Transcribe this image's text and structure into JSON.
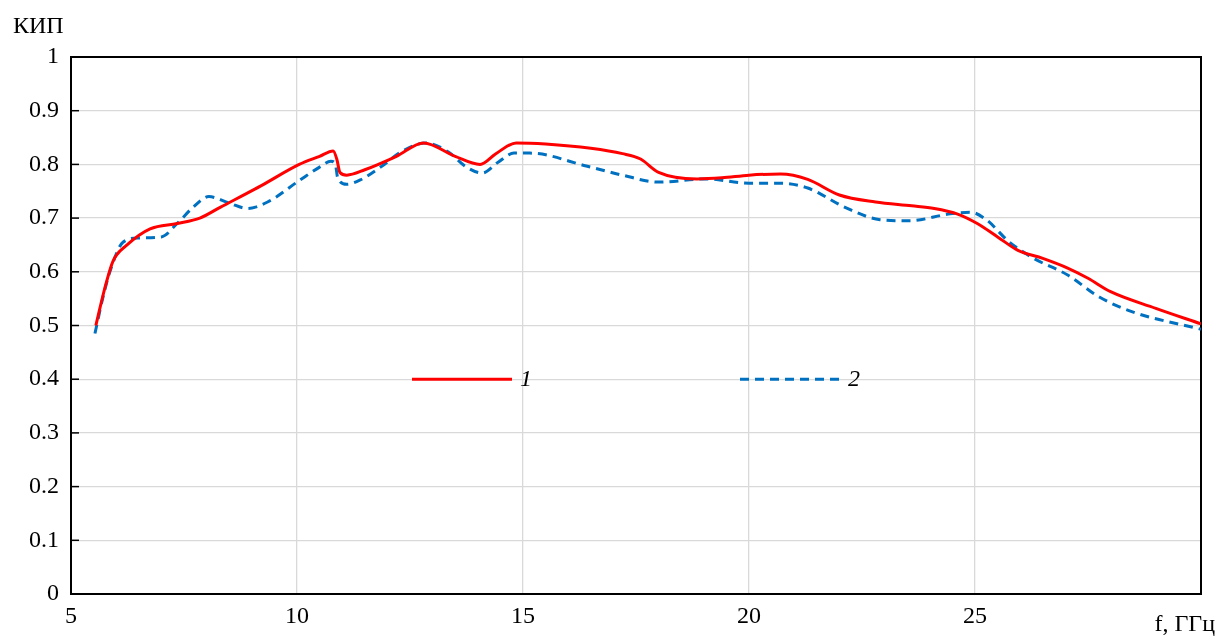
{
  "chart_data": {
    "type": "line",
    "xlabel": "f, ГГц",
    "ylabel": "КИП",
    "xlim": [
      5,
      30
    ],
    "xticks": [
      5,
      10,
      15,
      20,
      25
    ],
    "ylim": [
      0,
      1
    ],
    "yticks": [
      0,
      0.1,
      0.2,
      0.3,
      0.4,
      0.5,
      0.6,
      0.7,
      0.8,
      0.9,
      1
    ],
    "grid": true,
    "legend": "center",
    "marker": "none",
    "series": [
      {
        "name": "1",
        "color": "#ff0000",
        "line_style": "solid",
        "x": [
          5.55,
          5.75,
          5.93,
          6.24,
          6.75,
          7.35,
          7.85,
          8.3,
          9.2,
          10.05,
          10.5,
          10.8,
          10.88,
          10.95,
          11.1,
          11.5,
          12.2,
          12.8,
          13.5,
          14.05,
          14.4,
          14.85,
          15.5,
          16.5,
          17.2,
          17.6,
          18.0,
          18.85,
          19.4,
          20.0,
          20.7,
          21.3,
          22.0,
          22.8,
          23.6,
          24.1,
          24.6,
          25.05,
          25.5,
          25.95,
          26.5,
          27.05,
          27.5,
          28.0,
          29.0,
          30.0
        ],
        "values": [
          0.5,
          0.57,
          0.62,
          0.65,
          0.68,
          0.69,
          0.7,
          0.72,
          0.76,
          0.8,
          0.815,
          0.825,
          0.81,
          0.785,
          0.78,
          0.79,
          0.815,
          0.84,
          0.815,
          0.8,
          0.82,
          0.84,
          0.838,
          0.83,
          0.82,
          0.81,
          0.785,
          0.773,
          0.775,
          0.78,
          0.782,
          0.772,
          0.743,
          0.73,
          0.723,
          0.718,
          0.708,
          0.69,
          0.665,
          0.64,
          0.625,
          0.607,
          0.588,
          0.563,
          0.532,
          0.503
        ]
      },
      {
        "name": "2",
        "color": "#0070c0",
        "line_style": "dashed",
        "x": [
          5.53,
          5.7,
          5.86,
          6.15,
          6.5,
          7.0,
          7.35,
          7.7,
          8.05,
          8.5,
          8.9,
          9.35,
          10.05,
          10.5,
          10.75,
          10.85,
          10.9,
          11.1,
          11.4,
          11.85,
          12.3,
          12.85,
          13.35,
          13.75,
          14.1,
          14.45,
          14.8,
          15.15,
          16.4,
          17.2,
          18.0,
          19.05,
          20.0,
          20.7,
          21.3,
          22.15,
          22.9,
          23.55,
          24.45,
          24.9,
          25.25,
          25.75,
          26.3,
          27.05,
          27.75,
          28.5,
          30.0
        ],
        "values": [
          0.485,
          0.55,
          0.6,
          0.655,
          0.663,
          0.665,
          0.69,
          0.72,
          0.74,
          0.728,
          0.718,
          0.73,
          0.77,
          0.795,
          0.806,
          0.8,
          0.775,
          0.763,
          0.771,
          0.795,
          0.823,
          0.84,
          0.823,
          0.795,
          0.784,
          0.804,
          0.821,
          0.821,
          0.797,
          0.78,
          0.767,
          0.773,
          0.765,
          0.765,
          0.756,
          0.719,
          0.697,
          0.695,
          0.708,
          0.711,
          0.697,
          0.656,
          0.625,
          0.594,
          0.553,
          0.525,
          0.493
        ]
      }
    ]
  }
}
